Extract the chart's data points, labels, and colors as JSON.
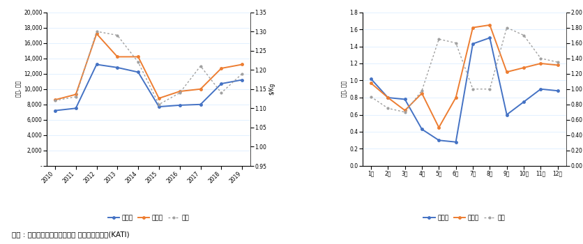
{
  "left_chart": {
    "years": [
      2010,
      2011,
      2012,
      2013,
      2014,
      2015,
      2016,
      2017,
      2018,
      2019
    ],
    "suip_vol": [
      7200,
      7500,
      13200,
      12800,
      12200,
      7700,
      7900,
      8000,
      10700,
      11200
    ],
    "suip_val": [
      8600,
      9300,
      17200,
      14200,
      14200,
      8800,
      9700,
      10000,
      12700,
      13200
    ],
    "price": [
      1.12,
      1.13,
      1.3,
      1.29,
      1.22,
      1.11,
      1.14,
      1.21,
      1.14,
      1.19
    ],
    "left_ylim": [
      0,
      20000
    ],
    "left_yticks": [
      0,
      2000,
      4000,
      6000,
      8000,
      10000,
      12000,
      14000,
      16000,
      18000,
      20000
    ],
    "right_ylim": [
      0.95,
      1.35
    ],
    "right_yticks": [
      0.95,
      1.0,
      1.05,
      1.1,
      1.15,
      1.2,
      1.25,
      1.3,
      1.35
    ],
    "left_ylabel": "천톤, 백만",
    "right_ylabel": "$/Kg"
  },
  "right_chart": {
    "months": [
      "1월",
      "2월",
      "3월",
      "4월",
      "5월",
      "6월",
      "7월",
      "8월",
      "9월",
      "10월",
      "11월",
      "12월"
    ],
    "suip_vol": [
      1.02,
      0.8,
      0.78,
      0.43,
      0.3,
      0.28,
      1.43,
      1.5,
      0.6,
      0.75,
      0.9,
      0.88
    ],
    "suip_val": [
      0.97,
      0.8,
      0.65,
      0.85,
      0.45,
      0.8,
      1.62,
      1.65,
      1.1,
      1.15,
      1.2,
      1.18
    ],
    "price": [
      0.9,
      0.75,
      0.7,
      0.98,
      1.65,
      1.6,
      1.0,
      1.0,
      1.8,
      1.7,
      1.4,
      1.35
    ],
    "left_ylim": [
      0.0,
      1.8
    ],
    "left_yticks": [
      0.0,
      0.2,
      0.4,
      0.6,
      0.8,
      1.0,
      1.2,
      1.4,
      1.6,
      1.8
    ],
    "right_ylim": [
      0.0,
      2.0
    ],
    "right_yticks": [
      0.0,
      0.2,
      0.4,
      0.6,
      0.8,
      1.0,
      1.2,
      1.4,
      1.6,
      1.8,
      2.0
    ],
    "left_ylabel": "천톤, 백만",
    "right_ylabel": "$/Kg"
  },
  "legend_labels": [
    "수입량",
    "수입액",
    "단가"
  ],
  "source_text": "출잘 : 한국농수산식품유통공사 농식품수출정보(KATI)",
  "line_colors": {
    "vol": "#4472C4",
    "val": "#ED7D31",
    "price": "#A0A0A0"
  },
  "background_color": "#FFFFFF",
  "grid_color": "#DDEEFF"
}
